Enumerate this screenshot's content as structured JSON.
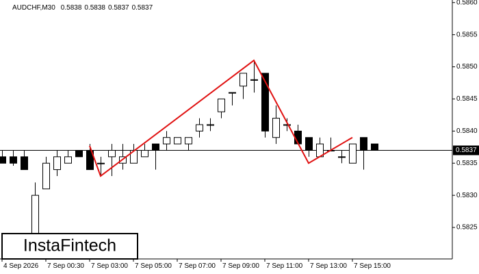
{
  "chart_data": {
    "type": "candlestick",
    "title": "AUDCHF,M30",
    "header_values": [
      0.5838,
      0.5838,
      0.5837,
      0.5837
    ],
    "categories": [
      "4 Sep 2026",
      null,
      null,
      null,
      "7 Sep 00:30",
      null,
      null,
      null,
      "7 Sep 03:00",
      null,
      null,
      null,
      "7 Sep 05:00",
      null,
      null,
      null,
      "7 Sep 07:00",
      null,
      null,
      null,
      "7 Sep 09:00",
      null,
      null,
      null,
      "7 Sep 11:00",
      null,
      null,
      null,
      "7 Sep 13:00",
      null,
      null,
      null,
      "7 Sep 15:00",
      null,
      null
    ],
    "open": [
      0.5836,
      0.5836,
      0.5836,
      0.58235,
      0.5831,
      0.5834,
      0.5835,
      0.5837,
      0.5837,
      0.5835,
      0.5836,
      0.5835,
      0.5835,
      0.5836,
      0.5838,
      0.5838,
      0.5838,
      0.5838,
      0.584,
      0.5841,
      0.5843,
      0.5846,
      0.5847,
      0.5848,
      0.5849,
      0.5839,
      0.5841,
      0.584,
      0.5839,
      0.5836,
      0.5837,
      0.5836,
      0.5835,
      0.5839,
      0.5838
    ],
    "high": [
      0.5837,
      0.5837,
      0.5837,
      0.5832,
      0.5836,
      0.5837,
      0.5837,
      0.5837,
      0.5838,
      0.5836,
      0.5838,
      0.5838,
      0.5838,
      0.5838,
      0.5838,
      0.584,
      0.5839,
      0.5839,
      0.5842,
      0.5842,
      0.5845,
      0.5846,
      0.5849,
      0.5851,
      0.5849,
      0.5844,
      0.5842,
      0.5841,
      0.5839,
      0.5839,
      0.5839,
      0.5837,
      0.5838,
      0.5839,
      0.5838
    ],
    "low": [
      0.5835,
      0.58346,
      0.5834,
      0.5822,
      0.5831,
      0.5833,
      0.5835,
      0.5836,
      0.5834,
      0.5833,
      0.5833,
      0.5834,
      0.5835,
      0.5836,
      0.5834,
      0.5837,
      0.5838,
      0.5837,
      0.5839,
      0.584,
      0.5842,
      0.5844,
      0.5845,
      0.5846,
      0.5839,
      0.5838,
      0.584,
      0.5838,
      0.5836,
      0.5836,
      0.5837,
      0.5835,
      0.5835,
      0.5834,
      0.5837
    ],
    "close": [
      0.5835,
      0.5835,
      0.5834,
      0.583,
      0.5835,
      0.5836,
      0.5836,
      0.5836,
      0.5834,
      0.5835,
      0.5837,
      0.5836,
      0.5837,
      0.5837,
      0.5837,
      0.5839,
      0.5839,
      0.5839,
      0.5841,
      0.5841,
      0.5845,
      0.5846,
      0.5849,
      0.5848,
      0.584,
      0.5842,
      0.5841,
      0.5838,
      0.5837,
      0.5838,
      0.5837,
      0.5836,
      0.5838,
      0.5837,
      0.5837
    ],
    "up_color": "#ffffff",
    "down_color": "#000000",
    "ylim": [
      0.58201,
      0.58604
    ],
    "yticks": [
      0.5825,
      {
        "value": 0.583,
        "label": "0.5830"
      },
      0.5835,
      {
        "value": 0.584,
        "label": "0.5840"
      },
      0.5845,
      {
        "value": 0.585,
        "label": "0.5850"
      },
      0.5855,
      {
        "value": 0.586,
        "label": "0.5860"
      }
    ],
    "current_price": 0.5837,
    "pattern": {
      "color": "#e01010",
      "x": [
        8,
        9,
        23,
        28,
        32
      ],
      "values": [
        0.58377,
        0.5833,
        0.5851,
        0.5835,
        0.5839
      ]
    },
    "logo": "InstaFintech"
  }
}
